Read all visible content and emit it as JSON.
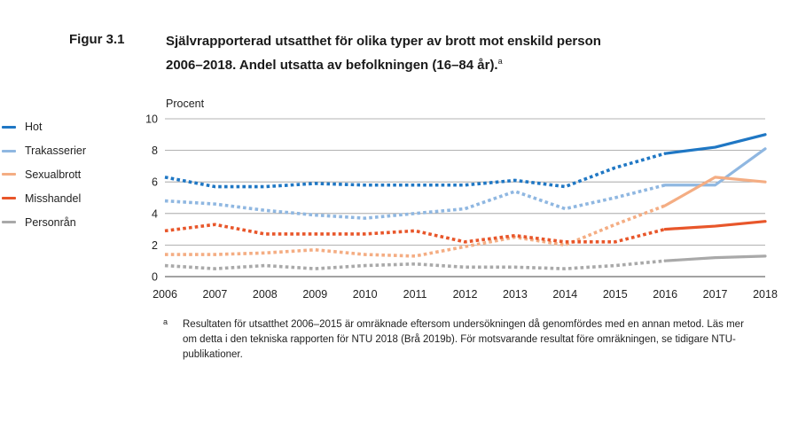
{
  "figure": {
    "label": "Figur 3.1",
    "title_line1": "Självrapporterad utsatthet för olika typer av brott mot enskild person",
    "title_line2": "2006–2018. Andel utsatta av befolkningen (16–84 år).",
    "title_mark": "a"
  },
  "footnote": {
    "mark": "a",
    "text": "Resultaten för utsatthet 2006–2015 är omräknade eftersom undersökningen då genomfördes med en annan metod. Läs mer om detta i den tekniska rapporten för NTU 2018 (Brå 2019b). För motsvarande resultat före omräkningen, se tidigare NTU-publikationer."
  },
  "chart_data": {
    "type": "line",
    "ylabel": "Procent",
    "xlabel": "",
    "x": [
      2006,
      2007,
      2008,
      2009,
      2010,
      2011,
      2012,
      2013,
      2014,
      2015,
      2016,
      2017,
      2018
    ],
    "ylim": [
      0,
      10
    ],
    "yticks": [
      0,
      2,
      4,
      6,
      8,
      10
    ],
    "grid": true,
    "legend_position": "left",
    "dotted_until": 2016,
    "series": [
      {
        "name": "Hot",
        "color": "#1f77c4",
        "values": [
          6.3,
          5.7,
          5.7,
          5.9,
          5.8,
          5.8,
          5.8,
          6.1,
          5.7,
          6.9,
          7.8,
          8.2,
          9.0
        ]
      },
      {
        "name": "Trakasserier",
        "color": "#8fb7e1",
        "values": [
          4.8,
          4.6,
          4.2,
          3.9,
          3.7,
          4.0,
          4.3,
          5.4,
          4.3,
          5.0,
          5.8,
          5.8,
          8.1
        ]
      },
      {
        "name": "Sexualbrott",
        "color": "#f4ad83",
        "values": [
          1.4,
          1.4,
          1.5,
          1.7,
          1.4,
          1.3,
          1.9,
          2.5,
          2.0,
          3.3,
          4.5,
          6.3,
          6.0
        ]
      },
      {
        "name": "Misshandel",
        "color": "#e8562a",
        "values": [
          2.9,
          3.3,
          2.7,
          2.7,
          2.7,
          2.9,
          2.2,
          2.6,
          2.2,
          2.2,
          3.0,
          3.2,
          3.5
        ]
      },
      {
        "name": "Personrån",
        "color": "#a9a9a9",
        "values": [
          0.7,
          0.5,
          0.7,
          0.5,
          0.7,
          0.8,
          0.6,
          0.6,
          0.5,
          0.7,
          1.0,
          1.2,
          1.3
        ]
      }
    ]
  }
}
